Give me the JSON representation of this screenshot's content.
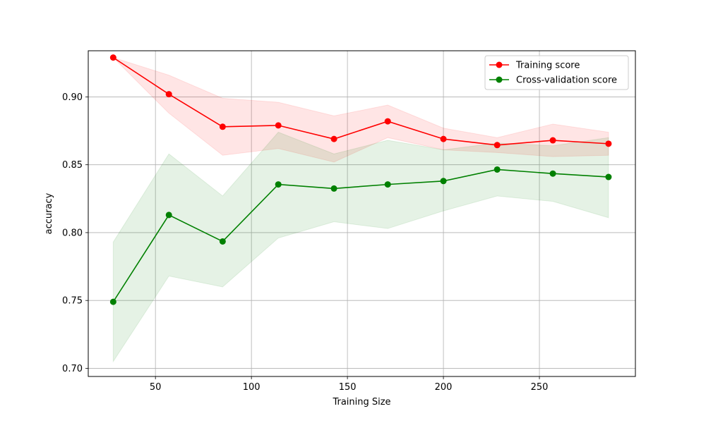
{
  "chart_data": {
    "type": "line",
    "title": "",
    "xlabel": "Training Size",
    "ylabel": "accuracy",
    "xlim": [
      15,
      300
    ],
    "ylim": [
      0.694,
      0.934
    ],
    "xticks": [
      50,
      100,
      150,
      200,
      250
    ],
    "xtick_labels": [
      "50",
      "100",
      "150",
      "200",
      "250"
    ],
    "yticks": [
      0.7,
      0.75,
      0.8,
      0.85,
      0.9
    ],
    "ytick_labels": [
      "0.70",
      "0.75",
      "0.80",
      "0.85",
      "0.90"
    ],
    "grid": true,
    "legend_position": "top-right",
    "x": [
      28,
      57,
      85,
      114,
      143,
      171,
      200,
      228,
      257,
      286
    ],
    "series": [
      {
        "name": "Training score",
        "color": "#ff0000",
        "band_color": "#ff0000",
        "values": [
          0.929,
          0.902,
          0.878,
          0.879,
          0.869,
          0.882,
          0.869,
          0.8645,
          0.868,
          0.8655
        ],
        "lower": [
          0.929,
          0.888,
          0.857,
          0.862,
          0.852,
          0.87,
          0.861,
          0.859,
          0.856,
          0.857
        ],
        "upper": [
          0.929,
          0.916,
          0.899,
          0.896,
          0.886,
          0.894,
          0.877,
          0.87,
          0.88,
          0.874
        ]
      },
      {
        "name": "Cross-validation score",
        "color": "#008000",
        "band_color": "#008000",
        "values": [
          0.749,
          0.813,
          0.7935,
          0.8355,
          0.8325,
          0.8355,
          0.838,
          0.8465,
          0.8435,
          0.841
        ],
        "lower": [
          0.705,
          0.768,
          0.76,
          0.796,
          0.808,
          0.803,
          0.816,
          0.827,
          0.823,
          0.811
        ],
        "upper": [
          0.793,
          0.858,
          0.827,
          0.874,
          0.858,
          0.868,
          0.861,
          0.866,
          0.864,
          0.87
        ]
      }
    ]
  }
}
